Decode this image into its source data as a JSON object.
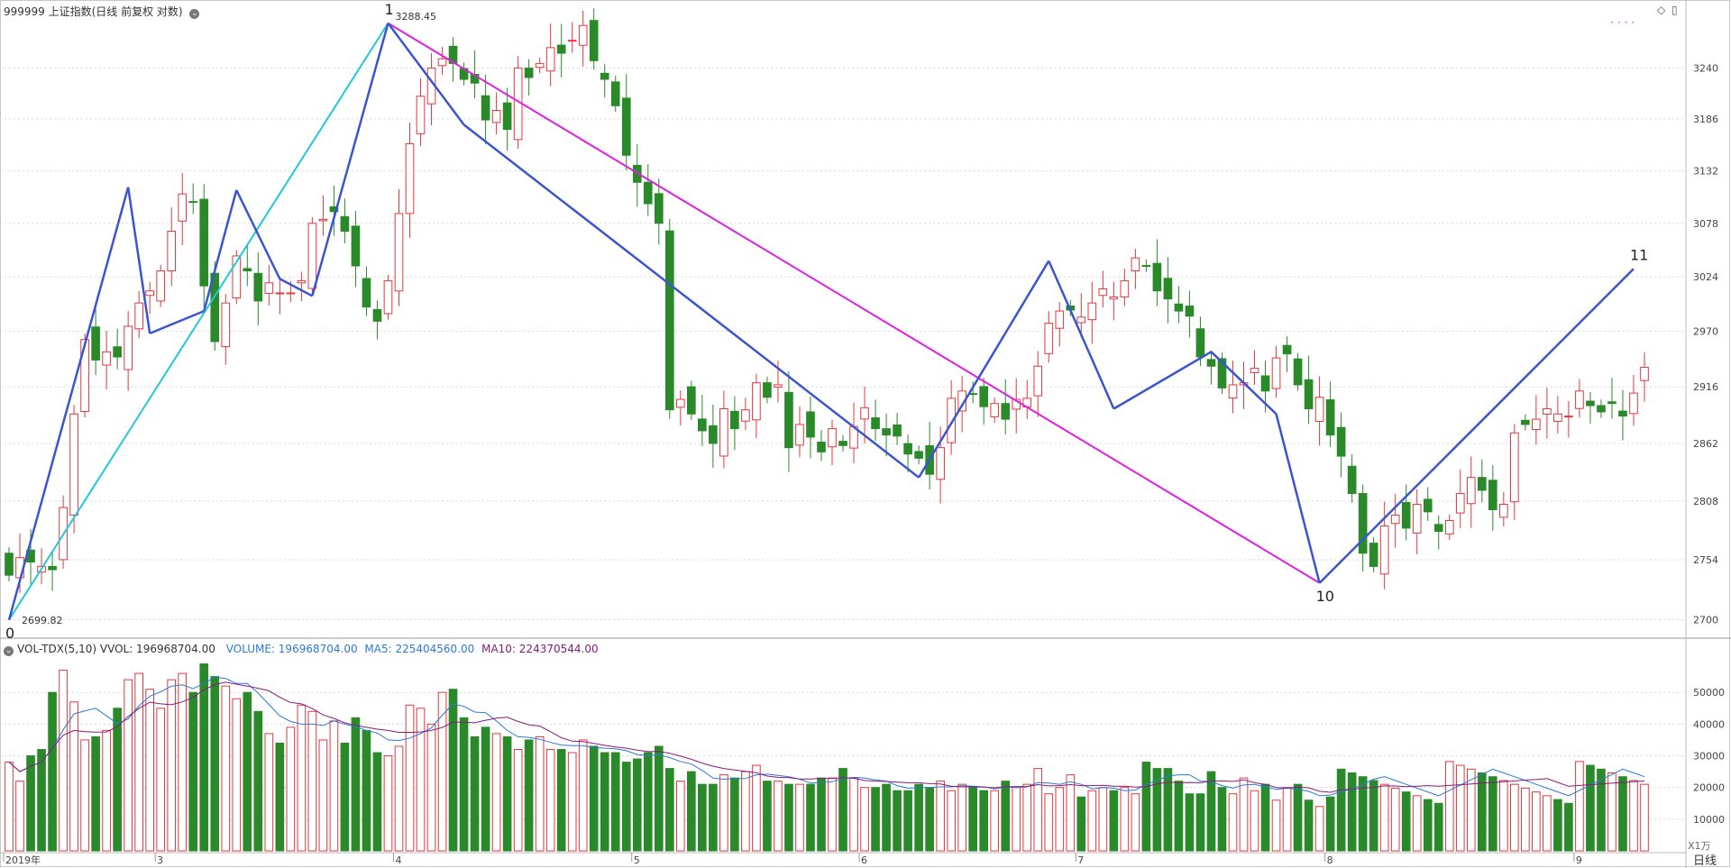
{
  "header": {
    "title": "999999 上证指数(日线 前复权 对数)",
    "price_hi_label": "3288.45",
    "price_lo_label": "2699.82"
  },
  "volume_header": {
    "indicator": "VOL-TDX(5,10)",
    "vvol": "VVOL: 196968704.00",
    "volume": "VOLUME: 196968704.00",
    "ma5": "MA5: 225404560.00",
    "ma10": "MA10: 224370544.00"
  },
  "x_labels": [
    "2019年",
    "3",
    "4",
    "5",
    "6",
    "7",
    "8",
    "9"
  ],
  "corner_label": "日线",
  "unit_label": "X1万",
  "colors": {
    "up": "#e0393e",
    "down": "#2a8a2a",
    "wave": "#3b55d0",
    "magenta": "#e020e0",
    "cyan": "#20c8d8",
    "ma5": "#2a7ad8",
    "ma10": "#8a1a7a"
  },
  "chart_data": [
    {
      "type": "candlestick",
      "title": "999999 上证指数(日线 前复权 对数)",
      "scale": "log",
      "y_ticks": [
        3240,
        3186,
        3132,
        3078,
        3024,
        2970,
        2916,
        2862,
        2808,
        2754,
        2700
      ],
      "ylim": [
        2690,
        3300
      ],
      "x_month_labels": [
        "2019年",
        "3",
        "4",
        "5",
        "6",
        "7",
        "8",
        "9"
      ],
      "x_month_positions": [
        0,
        14,
        36,
        58,
        79,
        99,
        122,
        145
      ],
      "high_marker": {
        "index": 35,
        "value": 3288.45
      },
      "low_marker": {
        "index": 0,
        "value": 2699.82
      },
      "wave_points": [
        {
          "label": "0",
          "index": 0,
          "value": 2699.82
        },
        {
          "label": "1",
          "index": 35,
          "value": 3288.45
        },
        {
          "label": "10",
          "index": 121,
          "value": 2733
        },
        {
          "label": "11",
          "index": 150,
          "value": 3032
        }
      ],
      "closes": [
        2740,
        2756,
        2752,
        2748,
        2745,
        2802,
        2890,
        2962,
        2942,
        2950,
        2945,
        2975,
        2998,
        3010,
        3030,
        3070,
        3108,
        3100,
        3015,
        2960,
        2998,
        3045,
        3030,
        3000,
        3018,
        3008,
        3008,
        3020,
        3078,
        3082,
        3090,
        3070,
        3035,
        2994,
        2980,
        3020,
        3088,
        3160,
        3210,
        3240,
        3250,
        3245,
        3228,
        3224,
        3185,
        3195,
        3175,
        3240,
        3230,
        3245,
        3262,
        3256,
        3270,
        3286,
        3248,
        3228,
        3200,
        3148,
        3120,
        3098,
        3078,
        2894,
        2904,
        2890,
        2874,
        2862,
        2895,
        2876,
        2894,
        2920,
        2906,
        2918,
        2858,
        2880,
        2868,
        2854,
        2876,
        2860,
        2878,
        2896,
        2876,
        2870,
        2869,
        2852,
        2848,
        2833,
        2858,
        2905,
        2912,
        2909,
        2897,
        2900,
        2885,
        2904,
        2905,
        2936,
        2978,
        2990,
        2991,
        2984,
        2998,
        3012,
        3004,
        3020,
        3043,
        3035,
        3010,
        3002,
        2990,
        2985,
        2945,
        2936,
        2915,
        2918,
        2920,
        2934,
        2912,
        2944,
        2948,
        2918,
        2895,
        2906
      ],
      "closes_note": "approximate daily closes read from chart, continuing to wave points"
    },
    {
      "type": "bar",
      "title": "VOL-TDX(5,10)",
      "yunit": "X1万",
      "y_ticks": [
        50000,
        40000,
        30000,
        20000,
        10000
      ],
      "ylim": [
        0,
        62000
      ],
      "values": [
        28000,
        22000,
        30000,
        32000,
        50000,
        57000,
        47000,
        35000,
        36000,
        38000,
        45000,
        54000,
        56000,
        51000,
        45000,
        54000,
        56000,
        50000,
        59000,
        55000,
        52000,
        48000,
        50000,
        44000,
        37000,
        34000,
        39000,
        46000,
        44000,
        35000,
        41000,
        34000,
        42000,
        38000,
        31000,
        30000,
        33000,
        46000,
        45000,
        40000,
        50000,
        51000,
        42000,
        36000,
        39000,
        37000,
        36000,
        32000,
        35000,
        36000,
        32000,
        32000,
        31000,
        35000,
        33000,
        31000,
        31000,
        28000,
        29000,
        31000,
        33000,
        26000,
        22000,
        25000,
        21000,
        21000,
        24000,
        23000,
        25000,
        27000,
        22000,
        22000,
        21000,
        21000,
        21000,
        23000,
        23000,
        26000,
        23000,
        20000,
        20000,
        21000,
        19000,
        19000,
        21000,
        20000,
        22000,
        19000,
        21000,
        20000,
        19000,
        19000,
        22000,
        20000,
        21000,
        26000,
        18000,
        20000,
        24000,
        17000,
        19000,
        20000,
        19000,
        20000,
        18000,
        28000,
        26000,
        26000,
        22000,
        18000,
        18000,
        25000,
        20000,
        18000,
        23000,
        19000,
        21000,
        16000,
        20000,
        21000,
        16000,
        14000,
        17000
      ],
      "ma5_note": "blue moving average",
      "ma10_note": "purple moving average",
      "last_volume": 196968704.0,
      "ma5": 225404560.0,
      "ma10": 224370544.0
    }
  ]
}
